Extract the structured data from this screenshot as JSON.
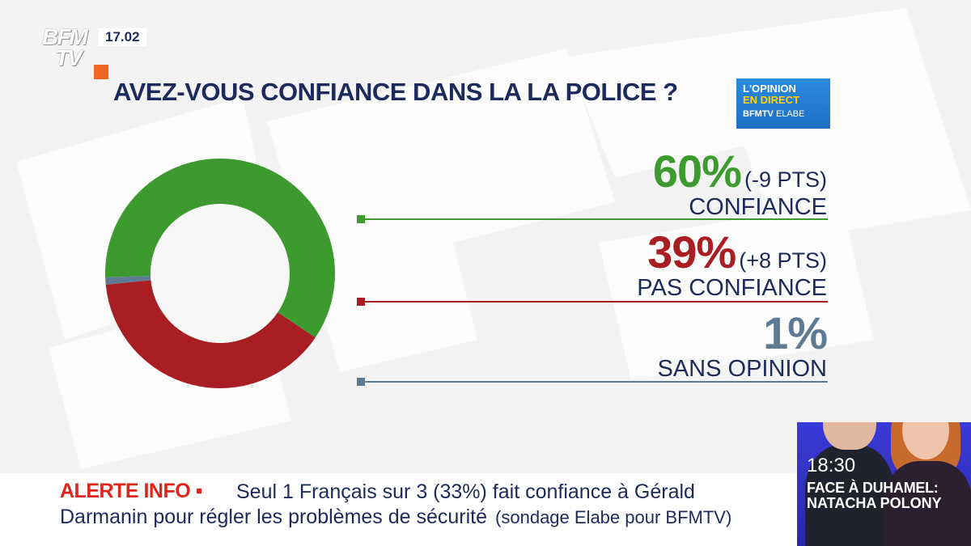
{
  "channel": {
    "logo_top": "BFM",
    "logo_bottom": "TV",
    "time": "17.02",
    "accent": "#f26522"
  },
  "question": "AVEZ-VOUS CONFIANCE DANS LA LA POLICE ?",
  "badge": {
    "line1": "L'OPINION",
    "line2": "EN DIRECT",
    "line3_brand": "BFMTV",
    "line3_partner": "ELABE"
  },
  "chart_data": {
    "type": "pie",
    "style": "donut",
    "title": "AVEZ-VOUS CONFIANCE DANS LA LA POLICE ?",
    "slices": [
      {
        "label": "CONFIANCE",
        "value": 60,
        "display": "60%",
        "change": "(-9 PTS)",
        "color": "#3d9a2f"
      },
      {
        "label": "PAS CONFIANCE",
        "value": 39,
        "display": "39%",
        "change": "(+8 PTS)",
        "color": "#a81e22"
      },
      {
        "label": "SANS OPINION",
        "value": 1,
        "display": "1%",
        "change": "",
        "color": "#5f7b93"
      }
    ],
    "legend": "right"
  },
  "ticker": {
    "tag": "ALERTE INFO ▪",
    "line1": "Seul 1 Français sur 3 (33%) fait confiance à Gérald",
    "line2": "Darmanin pour régler les problèmes de sécurité",
    "source": "(sondage Elabe pour BFMTV)"
  },
  "show": {
    "time": "18:30",
    "title": "FACE À DUHAMEL:",
    "guest": "NATACHA POLONY"
  }
}
